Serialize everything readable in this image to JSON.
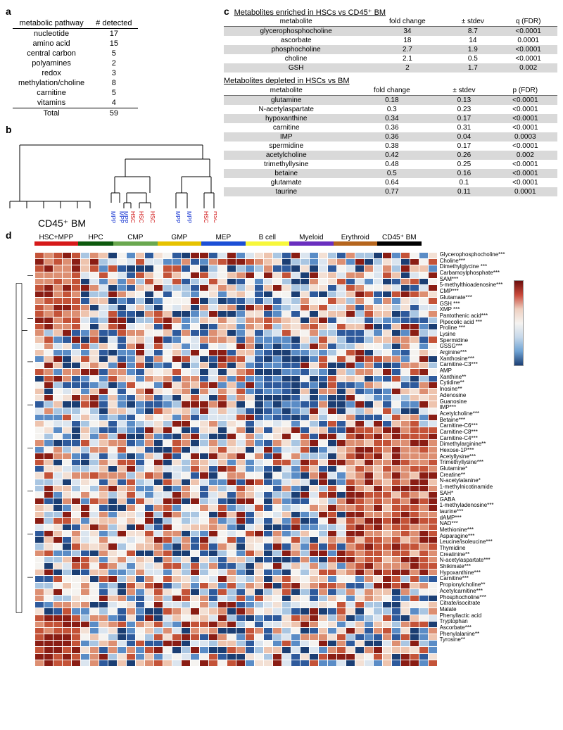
{
  "panelA": {
    "label": "a",
    "headers": [
      "metabolic pathway",
      "# detected"
    ],
    "rows": [
      [
        "nucleotide",
        17
      ],
      [
        "amino acid",
        15
      ],
      [
        "central carbon",
        5
      ],
      [
        "polyamines",
        2
      ],
      [
        "redox",
        3
      ],
      [
        "methylation/choline",
        8
      ],
      [
        "carnitine",
        5
      ],
      [
        "vitamins",
        4
      ]
    ],
    "total_label": "Total",
    "total_value": 59
  },
  "panelB": {
    "label": "b",
    "cd45_label": "CD45⁺ BM",
    "leaf_labels": [
      "MPP",
      "MPP",
      "MPP",
      "HSC",
      "HSC",
      "HSC",
      "MPP",
      "MPP",
      "HSC",
      "HSC"
    ],
    "leaf_colors": [
      "#1030d0",
      "#1030d0",
      "#1030d0",
      "#d01010",
      "#d01010",
      "#d01010",
      "#1030d0",
      "#1030d0",
      "#d01010",
      "#d01010"
    ]
  },
  "panelC": {
    "label": "c",
    "enriched_title": "Metabolites enriched in HSCs vs CD45⁺ BM",
    "depleted_title": "Metabolites depleted in HSCs vs BM",
    "headers": [
      "metabolite",
      "fold change",
      "± stdev",
      "q (FDR)"
    ],
    "headers2": [
      "metabolite",
      "fold change",
      "± stdev",
      "p (FDR)"
    ],
    "enriched": [
      [
        "glycerophosphocholine",
        34,
        8.7,
        "<0.0001"
      ],
      [
        "ascorbate",
        18,
        14,
        "0.0001"
      ],
      [
        "phosphocholine",
        2.7,
        1.9,
        "<0.0001"
      ],
      [
        "choline",
        2.1,
        0.5,
        "<0.0001"
      ],
      [
        "GSH",
        2.0,
        1.7,
        "0.002"
      ]
    ],
    "depleted": [
      [
        "glutamine",
        0.18,
        0.13,
        "<0.0001"
      ],
      [
        "N-acetylaspartate",
        0.3,
        0.23,
        "<0.0001"
      ],
      [
        "hypoxanthine",
        0.34,
        0.17,
        "<0.0001"
      ],
      [
        "carnitine",
        0.36,
        0.31,
        "<0.0001"
      ],
      [
        "IMP",
        0.36,
        0.04,
        "0.0003"
      ],
      [
        "spermidine",
        0.38,
        0.17,
        "<0.0001"
      ],
      [
        "acetylcholine",
        0.42,
        0.26,
        "0.002"
      ],
      [
        "trimethyllysine",
        0.48,
        0.25,
        "<0.0001"
      ],
      [
        "betaine",
        0.5,
        0.16,
        "<0.0001"
      ],
      [
        "glutamate",
        0.64,
        0.1,
        "<0.0001"
      ],
      [
        "taurine",
        0.77,
        0.11,
        "0.0001"
      ]
    ]
  },
  "panelD": {
    "label": "d",
    "groups": [
      {
        "name": "HSC+MPP",
        "n": 5,
        "color": "#d61a1a"
      },
      {
        "name": "HPC",
        "n": 4,
        "color": "#0e5a0e"
      },
      {
        "name": "CMP",
        "n": 5,
        "color": "#6aa84f"
      },
      {
        "name": "GMP",
        "n": 5,
        "color": "#e6c200"
      },
      {
        "name": "MEP",
        "n": 5,
        "color": "#1c4fd6"
      },
      {
        "name": "B cell",
        "n": 5,
        "color": "#f7f73b"
      },
      {
        "name": "Myeloid",
        "n": 5,
        "color": "#6a2fbf"
      },
      {
        "name": "Erythroid",
        "n": 5,
        "color": "#b5651d"
      },
      {
        "name": "CD45⁺ BM",
        "n": 5,
        "color": "#000000"
      }
    ],
    "row_labels": [
      "Glycerophosphocholine***",
      "Choline***",
      "Dimethylglycine ***",
      "Carbamoylphosphate***",
      "SAM***",
      "5-methylthioadenosine***",
      "CMP***",
      "Glutamate***",
      "GSH ***",
      "XMP ***",
      "Pantothenic acid***",
      "Pipecolic acid ***",
      "Proline ***",
      "Lysine",
      "Spermidine",
      "GSSG***",
      "Arginine***",
      "Xanthosine***",
      "Carnitine-C3***",
      "AMP",
      "Xanthine**",
      "Cytidine**",
      "Inosine**",
      "Adenosine",
      "Guanosine",
      "IMP***",
      "Acetylcholine***",
      "Betaine***",
      "Carnitine-C6***",
      "Carnitine-C8***",
      "Carnitine-C4***",
      "Dimethylarginine**",
      "Hexose-1P***",
      "Acetyllysine***",
      "Trimethyllysine***",
      "Glutamine*",
      "Creatine**",
      "N-acetylalanine*",
      "1-methylnicotinamide",
      "SAH*",
      "GABA",
      "1-methyladenosine***",
      "taurine***",
      "dAMP***",
      "NAD***",
      "Methionine***",
      "Asparagine***",
      "Leucine/isoleucine***",
      "Thymidine",
      "Creatinine**",
      "N-acetylaspartate***",
      "Shikimate***",
      "Hypoxanthine***",
      "Carnitine***",
      "Propionylcholine**",
      "Acetylcarnitine***",
      "Phosphocholine***",
      "Citrate/isocitrate",
      "Malate",
      "Phenyllactic acid",
      "Tryptophan",
      "Ascorbate***",
      "Phenylalanine**",
      "Tyrosine**"
    ],
    "color_scale": {
      "min": "#1b3e73",
      "mid": "#f5f3f0",
      "max": "#6b0d0d"
    },
    "heat_palette": [
      "#1b3e73",
      "#2e5a9c",
      "#5a8cc6",
      "#a9c6e2",
      "#dbe5ef",
      "#f5f3f0",
      "#f3e0d4",
      "#eec4ae",
      "#dd8f72",
      "#c45338",
      "#8a1d14"
    ],
    "heatmap_seed": 7
  }
}
